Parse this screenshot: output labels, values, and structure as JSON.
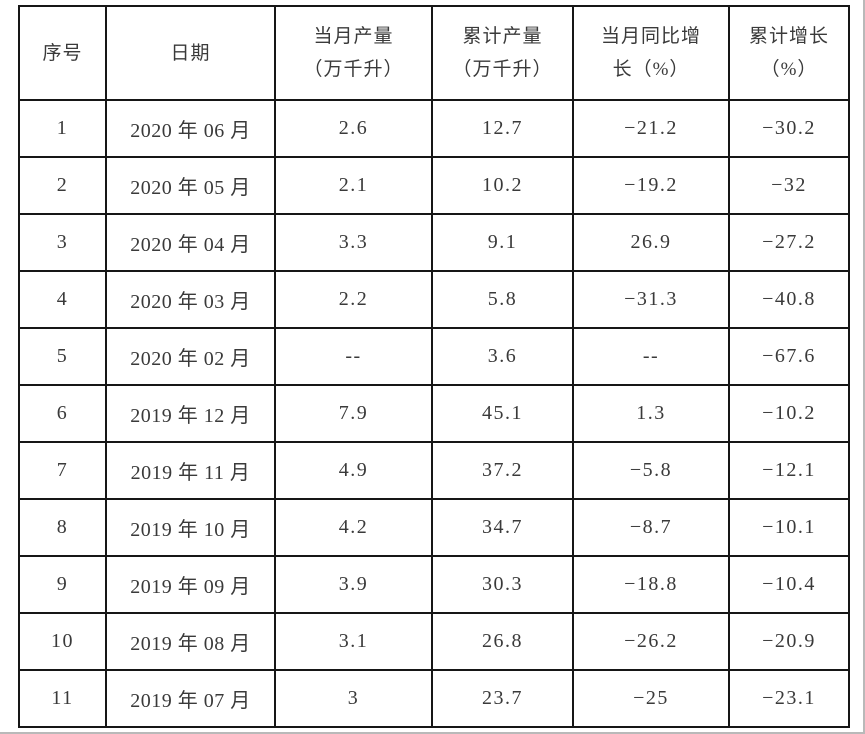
{
  "colors": {
    "table_border": "#161616",
    "text": "#3a3a3a",
    "background": "#ffffff",
    "page_edge": "#b9b9b9"
  },
  "chart_data": {
    "type": "table",
    "columns": [
      {
        "key": "index",
        "label": "序号",
        "lines": [
          "序号"
        ]
      },
      {
        "key": "date",
        "label": "日期",
        "lines": [
          "日期"
        ]
      },
      {
        "key": "monthly",
        "label": "当月产量（万千升）",
        "lines": [
          "当月产量",
          "（万千升）"
        ]
      },
      {
        "key": "cumulative",
        "label": "累计产量（万千升）",
        "lines": [
          "累计产量",
          "（万千升）"
        ]
      },
      {
        "key": "yoy",
        "label": "当月同比增长（%）",
        "lines": [
          "当月同比增",
          "长（%）"
        ]
      },
      {
        "key": "cumgrowth",
        "label": "累计增长（%）",
        "lines": [
          "累计增长",
          "（%）"
        ]
      }
    ],
    "rows": [
      [
        "1",
        "2020 年 06 月",
        "2.6",
        "12.7",
        "−21.2",
        "−30.2"
      ],
      [
        "2",
        "2020 年 05 月",
        "2.1",
        "10.2",
        "−19.2",
        "−32"
      ],
      [
        "3",
        "2020 年 04 月",
        "3.3",
        "9.1",
        "26.9",
        "−27.2"
      ],
      [
        "4",
        "2020 年 03 月",
        "2.2",
        "5.8",
        "−31.3",
        "−40.8"
      ],
      [
        "5",
        "2020 年 02 月",
        "--",
        "3.6",
        "--",
        "−67.6"
      ],
      [
        "6",
        "2019 年 12 月",
        "7.9",
        "45.1",
        "1.3",
        "−10.2"
      ],
      [
        "7",
        "2019 年 11 月",
        "4.9",
        "37.2",
        "−5.8",
        "−12.1"
      ],
      [
        "8",
        "2019 年 10 月",
        "4.2",
        "34.7",
        "−8.7",
        "−10.1"
      ],
      [
        "9",
        "2019 年 09 月",
        "3.9",
        "30.3",
        "−18.8",
        "−10.4"
      ],
      [
        "10",
        "2019 年 08 月",
        "3.1",
        "26.8",
        "−26.2",
        "−20.9"
      ],
      [
        "11",
        "2019 年 07 月",
        "3",
        "23.7",
        "−25",
        "−23.1"
      ]
    ]
  }
}
